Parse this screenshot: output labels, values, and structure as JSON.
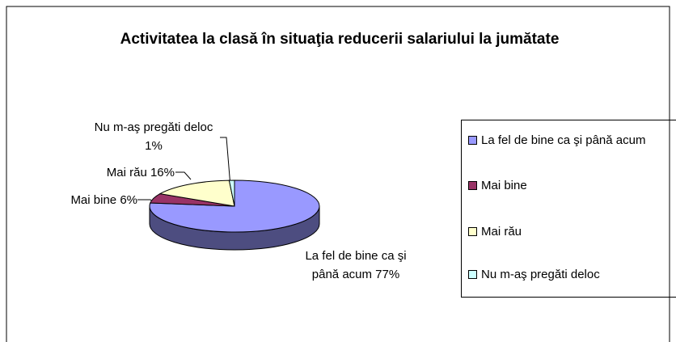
{
  "chart_data": {
    "type": "pie",
    "title": "Activitatea la clasă în situaţia reducerii salariului la jumătate",
    "categories": [
      "La fel de bine ca şi până acum",
      "Mai bine",
      "Mai rău",
      "Nu m-aş pregăti deloc"
    ],
    "values": [
      77,
      6,
      16,
      1
    ],
    "value_labels": [
      "77%",
      "6%",
      "16%",
      "1%"
    ],
    "colors": [
      "#9999ff",
      "#993366",
      "#ffffcc",
      "#ccffff"
    ],
    "legend": "right"
  }
}
